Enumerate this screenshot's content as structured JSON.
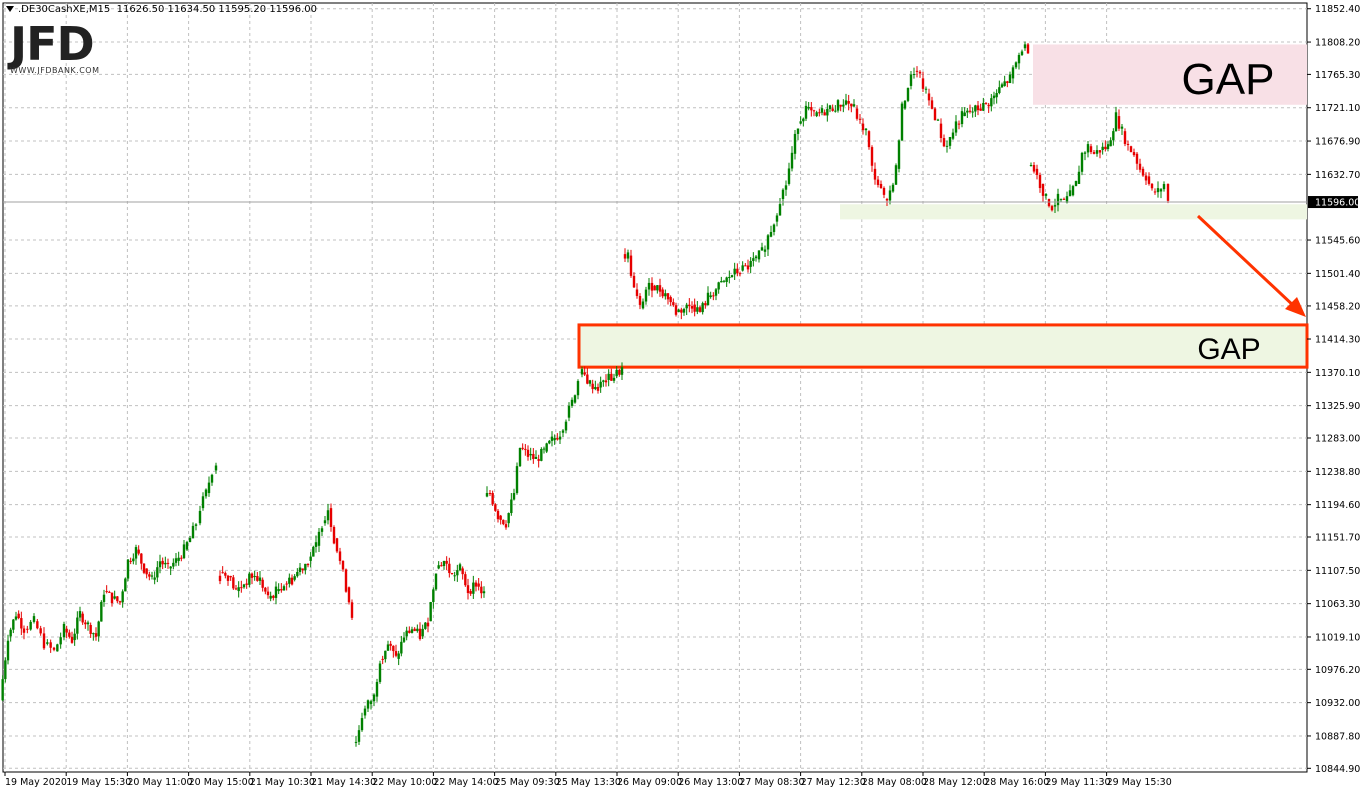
{
  "header": {
    "symbol": ".DE30CashXE,M15",
    "ohlc": "11626.50 11634.50 11595.20 11596.00"
  },
  "logo": {
    "name": "JFD",
    "url": "WWW.JFDBANK.COM"
  },
  "colors": {
    "bull": "#008000",
    "bear": "#e60000",
    "grid": "#c0c0c0",
    "gap_upper_fill": "#f8e0e6",
    "gap_lower_fill": "#eef6e2",
    "gap_lower_border": "#ff3300",
    "arrow": "#ff3300",
    "support_zone": "#eef6e2"
  },
  "chart_data": {
    "type": "candlestick",
    "y_ticks": [
      "11852.40",
      "11808.20",
      "11765.30",
      "11721.10",
      "11676.90",
      "11632.70",
      "11545.60",
      "11501.40",
      "11458.20",
      "11414.30",
      "11370.10",
      "11325.90",
      "11283.00",
      "11238.80",
      "11194.60",
      "11151.70",
      "11107.50",
      "11063.30",
      "11019.10",
      "10976.20",
      "10932.00",
      "10887.80",
      "10844.90"
    ],
    "ylim": [
      10840,
      11860
    ],
    "current_price": "11596.00",
    "x_ticks": [
      "19 May 2020",
      "19 May 15:30",
      "20 May 11:00",
      "20 May 15:00",
      "21 May 10:30",
      "21 May 14:30",
      "22 May 10:00",
      "22 May 14:00",
      "25 May 09:30",
      "25 May 13:30",
      "26 May 09:00",
      "26 May 13:00",
      "27 May 08:30",
      "27 May 12:30",
      "28 May 08:00",
      "28 May 12:00",
      "28 May 16:00",
      "29 May 11:30",
      "29 May 15:30"
    ],
    "annotations": [
      {
        "type": "gap-zone",
        "label": "GAP",
        "from": 11725,
        "to": 11805
      },
      {
        "type": "gap-zone",
        "label": "GAP",
        "from": 11377,
        "to": 11433
      },
      {
        "type": "support-zone",
        "from": 11573,
        "to": 11593
      }
    ],
    "price_path": [
      [
        0,
        10935
      ],
      [
        8,
        11020
      ],
      [
        16,
        11050
      ],
      [
        24,
        11030
      ],
      [
        34,
        11040
      ],
      [
        44,
        11010
      ],
      [
        54,
        11000
      ],
      [
        64,
        11030
      ],
      [
        72,
        11015
      ],
      [
        80,
        11050
      ],
      [
        88,
        11035
      ],
      [
        96,
        11020
      ],
      [
        104,
        11080
      ],
      [
        112,
        11070
      ],
      [
        120,
        11065
      ],
      [
        128,
        11120
      ],
      [
        136,
        11135
      ],
      [
        144,
        11110
      ],
      [
        152,
        11095
      ],
      [
        160,
        11120
      ],
      [
        168,
        11110
      ],
      [
        176,
        11120
      ],
      [
        184,
        11135
      ],
      [
        190,
        11150
      ],
      [
        196,
        11170
      ],
      [
        200,
        11190
      ],
      [
        206,
        11210
      ],
      [
        212,
        11240
      ],
      [
        216,
        11250
      ],
      [
        220,
        11105
      ],
      [
        228,
        11100
      ],
      [
        236,
        11080
      ],
      [
        244,
        11090
      ],
      [
        252,
        11100
      ],
      [
        260,
        11095
      ],
      [
        268,
        11070
      ],
      [
        276,
        11080
      ],
      [
        284,
        11090
      ],
      [
        292,
        11095
      ],
      [
        300,
        11110
      ],
      [
        308,
        11120
      ],
      [
        316,
        11140
      ],
      [
        322,
        11170
      ],
      [
        328,
        11190
      ],
      [
        334,
        11150
      ],
      [
        340,
        11120
      ],
      [
        346,
        11085
      ],
      [
        352,
        11050
      ],
      [
        356,
        10880
      ],
      [
        362,
        10915
      ],
      [
        368,
        10930
      ],
      [
        374,
        10940
      ],
      [
        380,
        10990
      ],
      [
        388,
        11010
      ],
      [
        396,
        10990
      ],
      [
        404,
        11020
      ],
      [
        412,
        11030
      ],
      [
        420,
        11020
      ],
      [
        428,
        11040
      ],
      [
        436,
        11110
      ],
      [
        444,
        11120
      ],
      [
        452,
        11100
      ],
      [
        460,
        11110
      ],
      [
        468,
        11080
      ],
      [
        476,
        11090
      ],
      [
        484,
        11075
      ],
      [
        490,
        11210
      ],
      [
        498,
        11180
      ],
      [
        506,
        11170
      ],
      [
        514,
        11210
      ],
      [
        520,
        11270
      ],
      [
        528,
        11260
      ],
      [
        536,
        11255
      ],
      [
        544,
        11265
      ],
      [
        552,
        11280
      ],
      [
        560,
        11290
      ],
      [
        566,
        11310
      ],
      [
        572,
        11330
      ],
      [
        578,
        11360
      ],
      [
        582,
        11370
      ],
      [
        590,
        11355
      ],
      [
        598,
        11350
      ],
      [
        606,
        11360
      ],
      [
        614,
        11365
      ],
      [
        622,
        11375
      ],
      [
        628,
        11525
      ],
      [
        634,
        11480
      ],
      [
        640,
        11455
      ],
      [
        646,
        11480
      ],
      [
        652,
        11485
      ],
      [
        660,
        11480
      ],
      [
        668,
        11470
      ],
      [
        676,
        11450
      ],
      [
        684,
        11455
      ],
      [
        692,
        11460
      ],
      [
        700,
        11450
      ],
      [
        708,
        11470
      ],
      [
        716,
        11480
      ],
      [
        724,
        11490
      ],
      [
        732,
        11500
      ],
      [
        740,
        11505
      ],
      [
        748,
        11510
      ],
      [
        756,
        11520
      ],
      [
        762,
        11530
      ],
      [
        768,
        11550
      ],
      [
        774,
        11570
      ],
      [
        780,
        11600
      ],
      [
        786,
        11620
      ],
      [
        792,
        11660
      ],
      [
        798,
        11700
      ],
      [
        806,
        11720
      ],
      [
        814,
        11710
      ],
      [
        822,
        11715
      ],
      [
        830,
        11720
      ],
      [
        838,
        11725
      ],
      [
        846,
        11730
      ],
      [
        854,
        11720
      ],
      [
        860,
        11700
      ],
      [
        866,
        11690
      ],
      [
        872,
        11640
      ],
      [
        878,
        11620
      ],
      [
        884,
        11600
      ],
      [
        890,
        11610
      ],
      [
        896,
        11640
      ],
      [
        902,
        11720
      ],
      [
        908,
        11750
      ],
      [
        914,
        11770
      ],
      [
        920,
        11760
      ],
      [
        926,
        11740
      ],
      [
        932,
        11720
      ],
      [
        938,
        11700
      ],
      [
        944,
        11670
      ],
      [
        950,
        11680
      ],
      [
        956,
        11700
      ],
      [
        962,
        11710
      ],
      [
        970,
        11715
      ],
      [
        978,
        11720
      ],
      [
        986,
        11725
      ],
      [
        994,
        11735
      ],
      [
        1002,
        11750
      ],
      [
        1010,
        11760
      ],
      [
        1016,
        11780
      ],
      [
        1022,
        11800
      ],
      [
        1028,
        11800
      ],
      [
        1034,
        11640
      ],
      [
        1040,
        11620
      ],
      [
        1046,
        11600
      ],
      [
        1052,
        11590
      ],
      [
        1058,
        11600
      ],
      [
        1064,
        11595
      ],
      [
        1070,
        11605
      ],
      [
        1076,
        11620
      ],
      [
        1082,
        11660
      ],
      [
        1088,
        11670
      ],
      [
        1094,
        11660
      ],
      [
        1100,
        11665
      ],
      [
        1108,
        11670
      ],
      [
        1116,
        11710
      ],
      [
        1122,
        11690
      ],
      [
        1128,
        11670
      ],
      [
        1134,
        11660
      ],
      [
        1140,
        11640
      ],
      [
        1146,
        11630
      ],
      [
        1152,
        11610
      ],
      [
        1158,
        11610
      ],
      [
        1164,
        11620
      ],
      [
        1168,
        11596
      ]
    ]
  }
}
